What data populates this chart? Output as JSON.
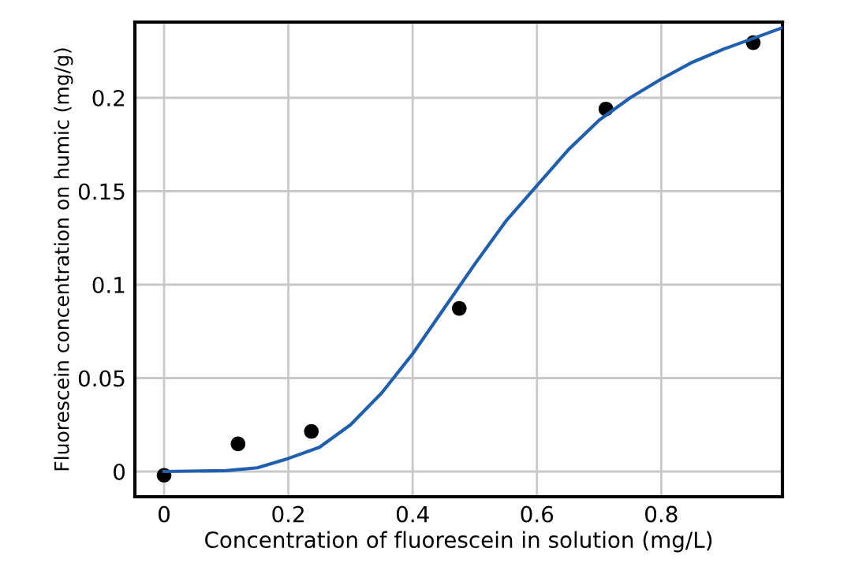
{
  "chart_data": {
    "type": "scatter",
    "xlabel": "Concentration of fluorescein in solution (mg/L)",
    "ylabel": "Fluorescein concentration on humic (mg/g)",
    "xlim": [
      -0.047,
      0.995
    ],
    "ylim": [
      -0.0135,
      0.2405
    ],
    "xticks": [
      0,
      0.2,
      0.4,
      0.6,
      0.8
    ],
    "yticks": [
      0,
      0.05,
      0.1,
      0.15,
      0.2
    ],
    "grid": true,
    "series": [
      {
        "color": "#000000",
        "marker": "circle",
        "x": [
          0,
          0.119,
          0.237,
          0.475,
          0.711,
          0.948
        ],
        "values": [
          -0.002,
          0.0148,
          0.0215,
          0.0873,
          0.194,
          0.2295
        ]
      },
      {
        "type": "line",
        "color": "#1f5fae",
        "marker": "none",
        "line_style": "solid",
        "x": [
          0,
          0.1,
          0.15,
          0.2,
          0.25,
          0.3,
          0.35,
          0.4,
          0.45,
          0.5,
          0.55,
          0.6,
          0.65,
          0.7,
          0.75,
          0.8,
          0.85,
          0.9,
          0.95,
          0.995
        ],
        "values": [
          0,
          0.0005,
          0.002,
          0.007,
          0.013,
          0.025,
          0.042,
          0.063,
          0.087,
          0.111,
          0.134,
          0.153,
          0.172,
          0.188,
          0.2,
          0.21,
          0.219,
          0.226,
          0.232,
          0.2375
        ]
      }
    ]
  }
}
